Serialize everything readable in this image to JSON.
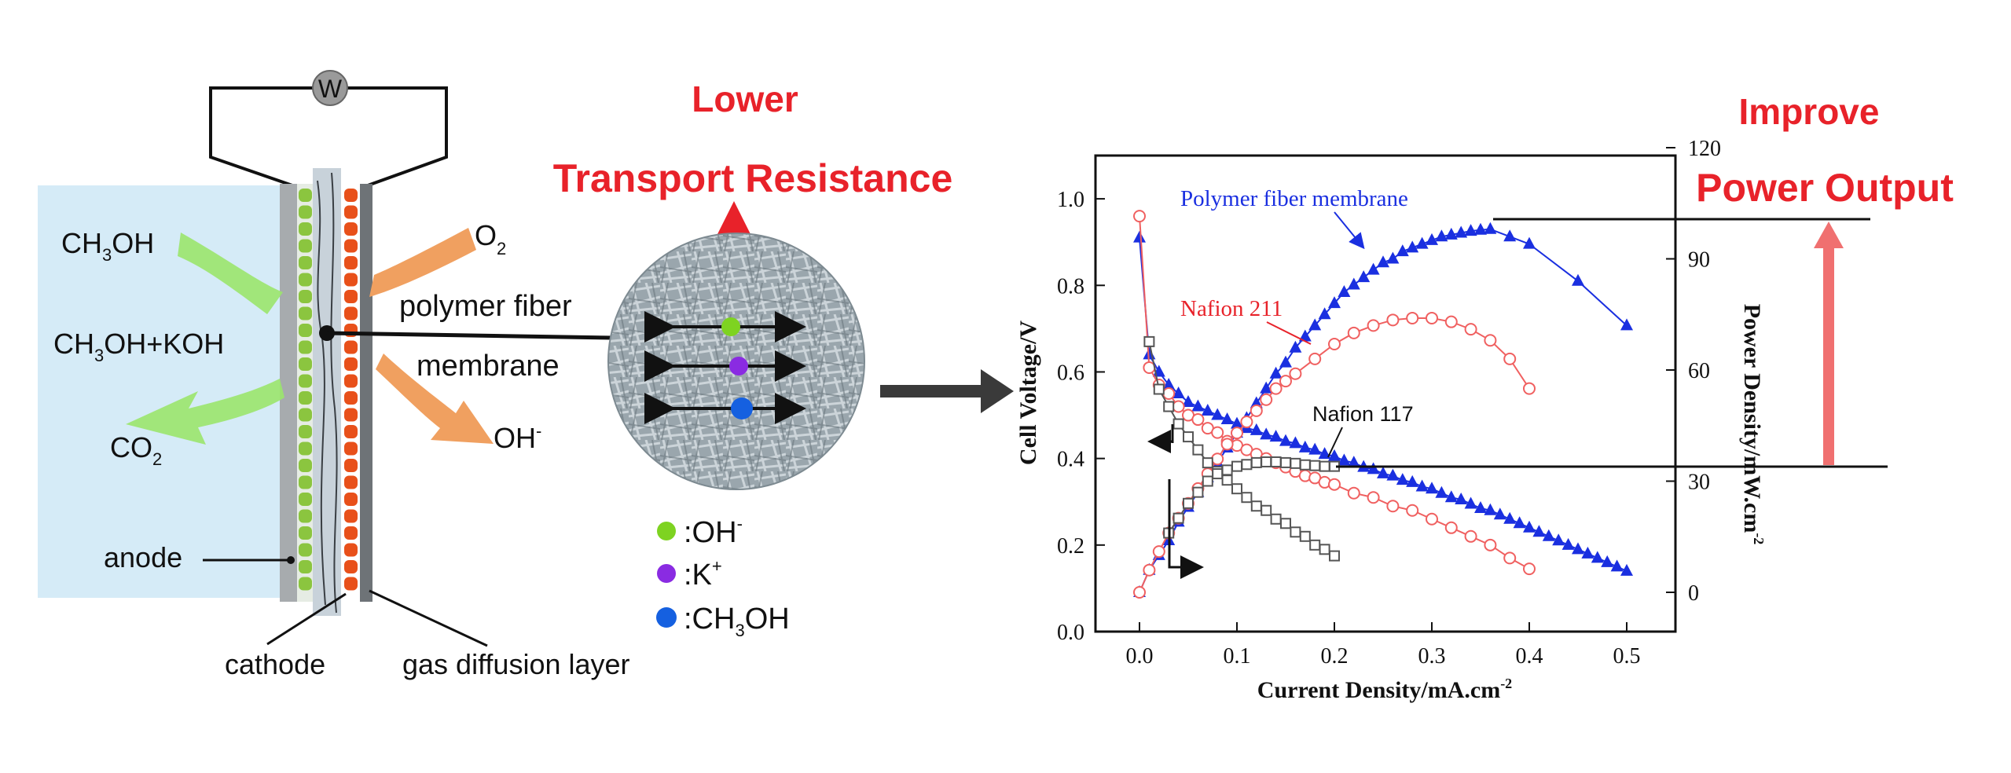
{
  "cell": {
    "meter": "W",
    "reactants": {
      "ch3oh": {
        "text": "CH",
        "sub": "3",
        "tail": "OH"
      },
      "ch3oh_koh": {
        "text": "CH",
        "sub": "3",
        "tail": "OH+KOH"
      },
      "co2": {
        "text": "CO",
        "sub": "2"
      },
      "o2": {
        "text": "O",
        "sub": "2"
      },
      "oh": {
        "text": "OH",
        "sup": "-"
      }
    },
    "membrane_label_line1": "polymer fiber",
    "membrane_label_line2": "membrane",
    "anode": "anode",
    "cathode": "cathode",
    "gdl": "gas diffusion layer"
  },
  "headline_left": {
    "line1": "Lower",
    "line2": "Transport Resistance"
  },
  "headline_right": {
    "line1": "Improve",
    "line2": "Power Output"
  },
  "legend": {
    "oh": {
      "prefix": ":OH",
      "sup": "-"
    },
    "k": {
      "prefix": ":K",
      "sup": "+"
    },
    "ch3oh": {
      "prefix": ":CH",
      "sub": "3",
      "tail": "OH"
    }
  },
  "colors": {
    "oh": "#7ed321",
    "k": "#8a2be2",
    "ch3oh": "#1560e0",
    "anode_green": "#8bc53f",
    "cathode_orange": "#e8501a",
    "headline_red": "#e8222a",
    "polymer_series": "#1a2fe0",
    "n211_series": "#f06060",
    "n117_series": "#555555",
    "improve_arrow": "#f07070"
  },
  "chart_data": {
    "type": "line",
    "xlabel": "Current Density/mA.cm",
    "xlabel_sup": "-2",
    "ylabel": "Cell Voltage/V",
    "y2label": "Power Density/mW.cm",
    "y2label_sup": "-2",
    "xlim": [
      -0.05,
      0.55
    ],
    "ylim": [
      0.0,
      1.1
    ],
    "y2lim": [
      -10,
      120
    ],
    "x_ticks": [
      "0.0",
      "0.1",
      "0.2",
      "0.3",
      "0.4",
      "0.5"
    ],
    "y_ticks": [
      "0.0",
      "0.2",
      "0.4",
      "0.6",
      "0.8",
      "1.0"
    ],
    "y2_ticks": [
      "0",
      "30",
      "60",
      "90",
      "120"
    ],
    "annotations": {
      "polymer": "Polymer fiber membrane",
      "n211": "Nafion 211",
      "n117": "Nafion 117"
    },
    "series": [
      {
        "name": "Polymer fiber membrane",
        "kind": "voltage",
        "marker": "triangle",
        "x": [
          0.0,
          0.01,
          0.02,
          0.03,
          0.04,
          0.05,
          0.06,
          0.07,
          0.08,
          0.09,
          0.1,
          0.11,
          0.12,
          0.13,
          0.14,
          0.15,
          0.16,
          0.17,
          0.18,
          0.19,
          0.2,
          0.21,
          0.22,
          0.23,
          0.24,
          0.25,
          0.26,
          0.27,
          0.28,
          0.29,
          0.3,
          0.31,
          0.32,
          0.33,
          0.34,
          0.35,
          0.36,
          0.37,
          0.38,
          0.39,
          0.4,
          0.41,
          0.42,
          0.43,
          0.44,
          0.45,
          0.46,
          0.47,
          0.48,
          0.49,
          0.5
        ],
        "y": [
          0.91,
          0.64,
          0.6,
          0.57,
          0.55,
          0.53,
          0.52,
          0.51,
          0.5,
          0.49,
          0.48,
          0.47,
          0.465,
          0.455,
          0.45,
          0.44,
          0.435,
          0.425,
          0.42,
          0.41,
          0.405,
          0.395,
          0.39,
          0.38,
          0.375,
          0.365,
          0.36,
          0.35,
          0.345,
          0.335,
          0.33,
          0.32,
          0.31,
          0.305,
          0.295,
          0.285,
          0.28,
          0.27,
          0.26,
          0.25,
          0.24,
          0.23,
          0.22,
          0.21,
          0.2,
          0.19,
          0.18,
          0.17,
          0.16,
          0.15,
          0.14
        ]
      },
      {
        "name": "Polymer fiber membrane",
        "kind": "power",
        "marker": "triangle",
        "x": [
          0.0,
          0.01,
          0.02,
          0.03,
          0.04,
          0.05,
          0.06,
          0.07,
          0.08,
          0.09,
          0.1,
          0.11,
          0.12,
          0.13,
          0.14,
          0.15,
          0.16,
          0.17,
          0.18,
          0.19,
          0.2,
          0.21,
          0.22,
          0.23,
          0.24,
          0.25,
          0.26,
          0.27,
          0.28,
          0.29,
          0.3,
          0.31,
          0.32,
          0.33,
          0.34,
          0.35,
          0.36,
          0.38,
          0.4,
          0.45,
          0.5
        ],
        "y": [
          0,
          6,
          10,
          14,
          19,
          23,
          27,
          31,
          35,
          39,
          43,
          47,
          51,
          55,
          59,
          62,
          66,
          69,
          72,
          75,
          78,
          81,
          83,
          85,
          87,
          89,
          90,
          92,
          93,
          94,
          95,
          96,
          96.5,
          97,
          97.5,
          97.8,
          98,
          96,
          94,
          84,
          72
        ]
      },
      {
        "name": "Nafion 211",
        "kind": "voltage",
        "marker": "circle",
        "x": [
          0.0,
          0.01,
          0.02,
          0.03,
          0.04,
          0.05,
          0.06,
          0.07,
          0.08,
          0.09,
          0.1,
          0.11,
          0.12,
          0.13,
          0.14,
          0.15,
          0.16,
          0.17,
          0.18,
          0.19,
          0.2,
          0.22,
          0.24,
          0.26,
          0.28,
          0.3,
          0.32,
          0.34,
          0.36,
          0.38,
          0.4
        ],
        "y": [
          0.96,
          0.61,
          0.57,
          0.55,
          0.52,
          0.5,
          0.49,
          0.47,
          0.46,
          0.44,
          0.43,
          0.42,
          0.41,
          0.4,
          0.39,
          0.38,
          0.37,
          0.36,
          0.355,
          0.345,
          0.34,
          0.32,
          0.31,
          0.29,
          0.28,
          0.26,
          0.24,
          0.22,
          0.2,
          0.17,
          0.145
        ]
      },
      {
        "name": "Nafion 211",
        "kind": "power",
        "marker": "circle",
        "x": [
          0.0,
          0.01,
          0.02,
          0.03,
          0.04,
          0.05,
          0.06,
          0.07,
          0.08,
          0.09,
          0.1,
          0.11,
          0.12,
          0.13,
          0.14,
          0.15,
          0.16,
          0.18,
          0.2,
          0.22,
          0.24,
          0.26,
          0.28,
          0.3,
          0.32,
          0.34,
          0.36,
          0.38,
          0.4
        ],
        "y": [
          0,
          6,
          11,
          16,
          20,
          24,
          28,
          32,
          36,
          40,
          43,
          46,
          49,
          52,
          55,
          57,
          59,
          63,
          67,
          70,
          72,
          73.5,
          74,
          74,
          73,
          71,
          68,
          63,
          55
        ]
      },
      {
        "name": "Nafion 117",
        "kind": "voltage",
        "marker": "square",
        "x": [
          0.01,
          0.02,
          0.03,
          0.04,
          0.05,
          0.06,
          0.07,
          0.08,
          0.09,
          0.1,
          0.11,
          0.12,
          0.13,
          0.14,
          0.15,
          0.16,
          0.17,
          0.18,
          0.19,
          0.2
        ],
        "y": [
          0.67,
          0.56,
          0.52,
          0.48,
          0.45,
          0.42,
          0.39,
          0.37,
          0.35,
          0.33,
          0.31,
          0.29,
          0.28,
          0.26,
          0.25,
          0.23,
          0.22,
          0.2,
          0.19,
          0.175
        ]
      },
      {
        "name": "Nafion 117",
        "kind": "power",
        "marker": "square",
        "x": [
          0.03,
          0.04,
          0.05,
          0.06,
          0.07,
          0.08,
          0.09,
          0.1,
          0.11,
          0.12,
          0.13,
          0.14,
          0.15,
          0.16,
          0.17,
          0.18,
          0.19,
          0.2
        ],
        "y": [
          16,
          20,
          24,
          27,
          30,
          32,
          33,
          34,
          34.5,
          35,
          35.2,
          35.2,
          35,
          34.8,
          34.4,
          34.2,
          34,
          34
        ]
      }
    ]
  }
}
